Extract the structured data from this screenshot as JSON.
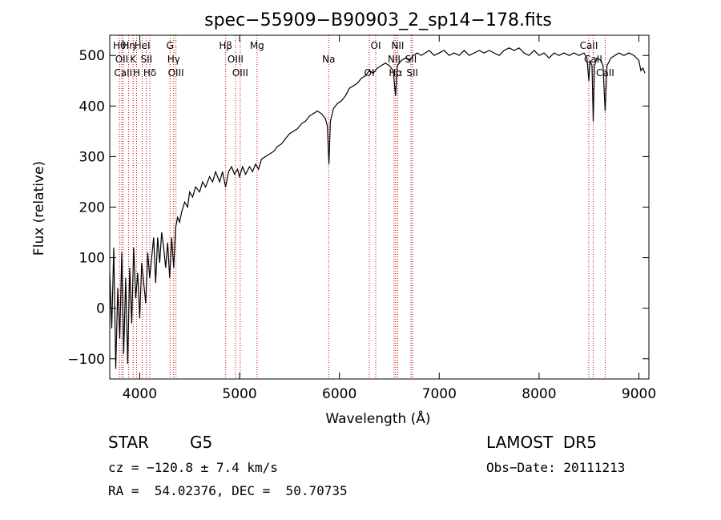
{
  "chart_data": {
    "type": "line",
    "title": "spec−55909−B90903_2_sp14−178.fits",
    "xlabel": "Wavelength (Å)",
    "ylabel": "Flux (relative)",
    "xlim": [
      3700,
      9100
    ],
    "ylim": [
      -140,
      540
    ],
    "xticks": [
      4000,
      5000,
      6000,
      7000,
      8000,
      9000
    ],
    "yticks": [
      -100,
      0,
      100,
      200,
      300,
      400,
      500
    ],
    "grid": false,
    "series": [
      {
        "name": "",
        "points": [
          [
            3700,
            70
          ],
          [
            3720,
            -40
          ],
          [
            3740,
            120
          ],
          [
            3760,
            -120
          ],
          [
            3780,
            40
          ],
          [
            3800,
            -60
          ],
          [
            3820,
            110
          ],
          [
            3840,
            -90
          ],
          [
            3860,
            60
          ],
          [
            3880,
            -110
          ],
          [
            3900,
            80
          ],
          [
            3920,
            -30
          ],
          [
            3940,
            120
          ],
          [
            3960,
            20
          ],
          [
            3980,
            70
          ],
          [
            4000,
            -20
          ],
          [
            4020,
            90
          ],
          [
            4040,
            50
          ],
          [
            4060,
            10
          ],
          [
            4080,
            110
          ],
          [
            4100,
            60
          ],
          [
            4120,
            100
          ],
          [
            4140,
            140
          ],
          [
            4160,
            50
          ],
          [
            4180,
            140
          ],
          [
            4200,
            90
          ],
          [
            4220,
            150
          ],
          [
            4240,
            120
          ],
          [
            4260,
            80
          ],
          [
            4280,
            130
          ],
          [
            4300,
            60
          ],
          [
            4320,
            140
          ],
          [
            4340,
            80
          ],
          [
            4360,
            160
          ],
          [
            4380,
            180
          ],
          [
            4400,
            170
          ],
          [
            4420,
            190
          ],
          [
            4450,
            210
          ],
          [
            4480,
            200
          ],
          [
            4500,
            230
          ],
          [
            4530,
            220
          ],
          [
            4560,
            240
          ],
          [
            4600,
            230
          ],
          [
            4630,
            250
          ],
          [
            4660,
            240
          ],
          [
            4700,
            260
          ],
          [
            4730,
            250
          ],
          [
            4760,
            270
          ],
          [
            4800,
            250
          ],
          [
            4830,
            270
          ],
          [
            4860,
            240
          ],
          [
            4890,
            270
          ],
          [
            4920,
            280
          ],
          [
            4950,
            265
          ],
          [
            4980,
            275
          ],
          [
            5000,
            260
          ],
          [
            5030,
            280
          ],
          [
            5060,
            265
          ],
          [
            5100,
            280
          ],
          [
            5130,
            270
          ],
          [
            5160,
            285
          ],
          [
            5190,
            275
          ],
          [
            5220,
            295
          ],
          [
            5260,
            300
          ],
          [
            5300,
            305
          ],
          [
            5340,
            310
          ],
          [
            5380,
            320
          ],
          [
            5420,
            325
          ],
          [
            5460,
            335
          ],
          [
            5500,
            345
          ],
          [
            5540,
            350
          ],
          [
            5580,
            355
          ],
          [
            5620,
            365
          ],
          [
            5660,
            370
          ],
          [
            5700,
            380
          ],
          [
            5740,
            385
          ],
          [
            5780,
            390
          ],
          [
            5820,
            385
          ],
          [
            5860,
            375
          ],
          [
            5880,
            360
          ],
          [
            5895,
            285
          ],
          [
            5910,
            370
          ],
          [
            5940,
            395
          ],
          [
            5980,
            405
          ],
          [
            6020,
            410
          ],
          [
            6060,
            420
          ],
          [
            6100,
            435
          ],
          [
            6140,
            440
          ],
          [
            6180,
            445
          ],
          [
            6220,
            455
          ],
          [
            6260,
            460
          ],
          [
            6300,
            470
          ],
          [
            6340,
            465
          ],
          [
            6380,
            475
          ],
          [
            6420,
            480
          ],
          [
            6460,
            485
          ],
          [
            6500,
            480
          ],
          [
            6540,
            470
          ],
          [
            6563,
            420
          ],
          [
            6580,
            480
          ],
          [
            6620,
            490
          ],
          [
            6660,
            495
          ],
          [
            6700,
            490
          ],
          [
            6740,
            500
          ],
          [
            6780,
            505
          ],
          [
            6820,
            500
          ],
          [
            6860,
            505
          ],
          [
            6900,
            510
          ],
          [
            6950,
            500
          ],
          [
            7000,
            505
          ],
          [
            7050,
            510
          ],
          [
            7100,
            500
          ],
          [
            7150,
            505
          ],
          [
            7200,
            500
          ],
          [
            7250,
            510
          ],
          [
            7300,
            500
          ],
          [
            7350,
            505
          ],
          [
            7400,
            510
          ],
          [
            7450,
            505
          ],
          [
            7500,
            510
          ],
          [
            7550,
            505
          ],
          [
            7600,
            500
          ],
          [
            7650,
            510
          ],
          [
            7700,
            515
          ],
          [
            7750,
            510
          ],
          [
            7800,
            515
          ],
          [
            7850,
            505
          ],
          [
            7900,
            500
          ],
          [
            7950,
            510
          ],
          [
            8000,
            500
          ],
          [
            8050,
            505
          ],
          [
            8100,
            495
          ],
          [
            8150,
            505
          ],
          [
            8200,
            500
          ],
          [
            8250,
            505
          ],
          [
            8300,
            500
          ],
          [
            8350,
            505
          ],
          [
            8400,
            500
          ],
          [
            8450,
            505
          ],
          [
            8480,
            495
          ],
          [
            8498,
            450
          ],
          [
            8510,
            490
          ],
          [
            8530,
            480
          ],
          [
            8542,
            370
          ],
          [
            8555,
            480
          ],
          [
            8580,
            495
          ],
          [
            8620,
            490
          ],
          [
            8640,
            480
          ],
          [
            8662,
            390
          ],
          [
            8680,
            480
          ],
          [
            8720,
            495
          ],
          [
            8760,
            500
          ],
          [
            8800,
            505
          ],
          [
            8850,
            500
          ],
          [
            8900,
            505
          ],
          [
            8950,
            500
          ],
          [
            9000,
            490
          ],
          [
            9020,
            470
          ],
          [
            9040,
            475
          ],
          [
            9060,
            465
          ]
        ]
      }
    ],
    "line_markers": [
      {
        "wl": 3798,
        "label": "Hθ"
      },
      {
        "wl": 3820,
        "label": "OII"
      },
      {
        "wl": 3835,
        "label": "CaII"
      },
      {
        "wl": 3889,
        "label": "Hη"
      },
      {
        "wl": 3934,
        "label": "K"
      },
      {
        "wl": 3969,
        "label": "H"
      },
      {
        "wl": 4026,
        "label": "HeI"
      },
      {
        "wl": 4068,
        "label": "SII"
      },
      {
        "wl": 4102,
        "label": "Hδ"
      },
      {
        "wl": 4304,
        "label": "G"
      },
      {
        "wl": 4340,
        "label": "Hγ"
      },
      {
        "wl": 4363,
        "label": "OIII"
      },
      {
        "wl": 4861,
        "label": "Hβ"
      },
      {
        "wl": 4959,
        "label": "OIII"
      },
      {
        "wl": 5007,
        "label": "OIII"
      },
      {
        "wl": 5175,
        "label": "Mg"
      },
      {
        "wl": 5893,
        "label": "Na"
      },
      {
        "wl": 6300,
        "label": "OI"
      },
      {
        "wl": 6364,
        "label": "OI"
      },
      {
        "wl": 6548,
        "label": "NII"
      },
      {
        "wl": 6563,
        "label": "Hα"
      },
      {
        "wl": 6584,
        "label": "NII"
      },
      {
        "wl": 6717,
        "label": "SII"
      },
      {
        "wl": 6731,
        "label": "SII"
      },
      {
        "wl": 8498,
        "label": "CaII"
      },
      {
        "wl": 8542,
        "label": "CaII"
      },
      {
        "wl": 8662,
        "label": "CaII"
      }
    ],
    "colors": {
      "line": "#000000",
      "markers": "#cc0000"
    }
  },
  "footer": {
    "object_class": "STAR",
    "subclass": "G5",
    "survey": "LAMOST  DR5",
    "cz": "cz = −120.8 ± 7.4 km/s",
    "obs_date": "Obs−Date: 20111213",
    "coords": "RA =  54.02376, DEC =  50.70735"
  }
}
